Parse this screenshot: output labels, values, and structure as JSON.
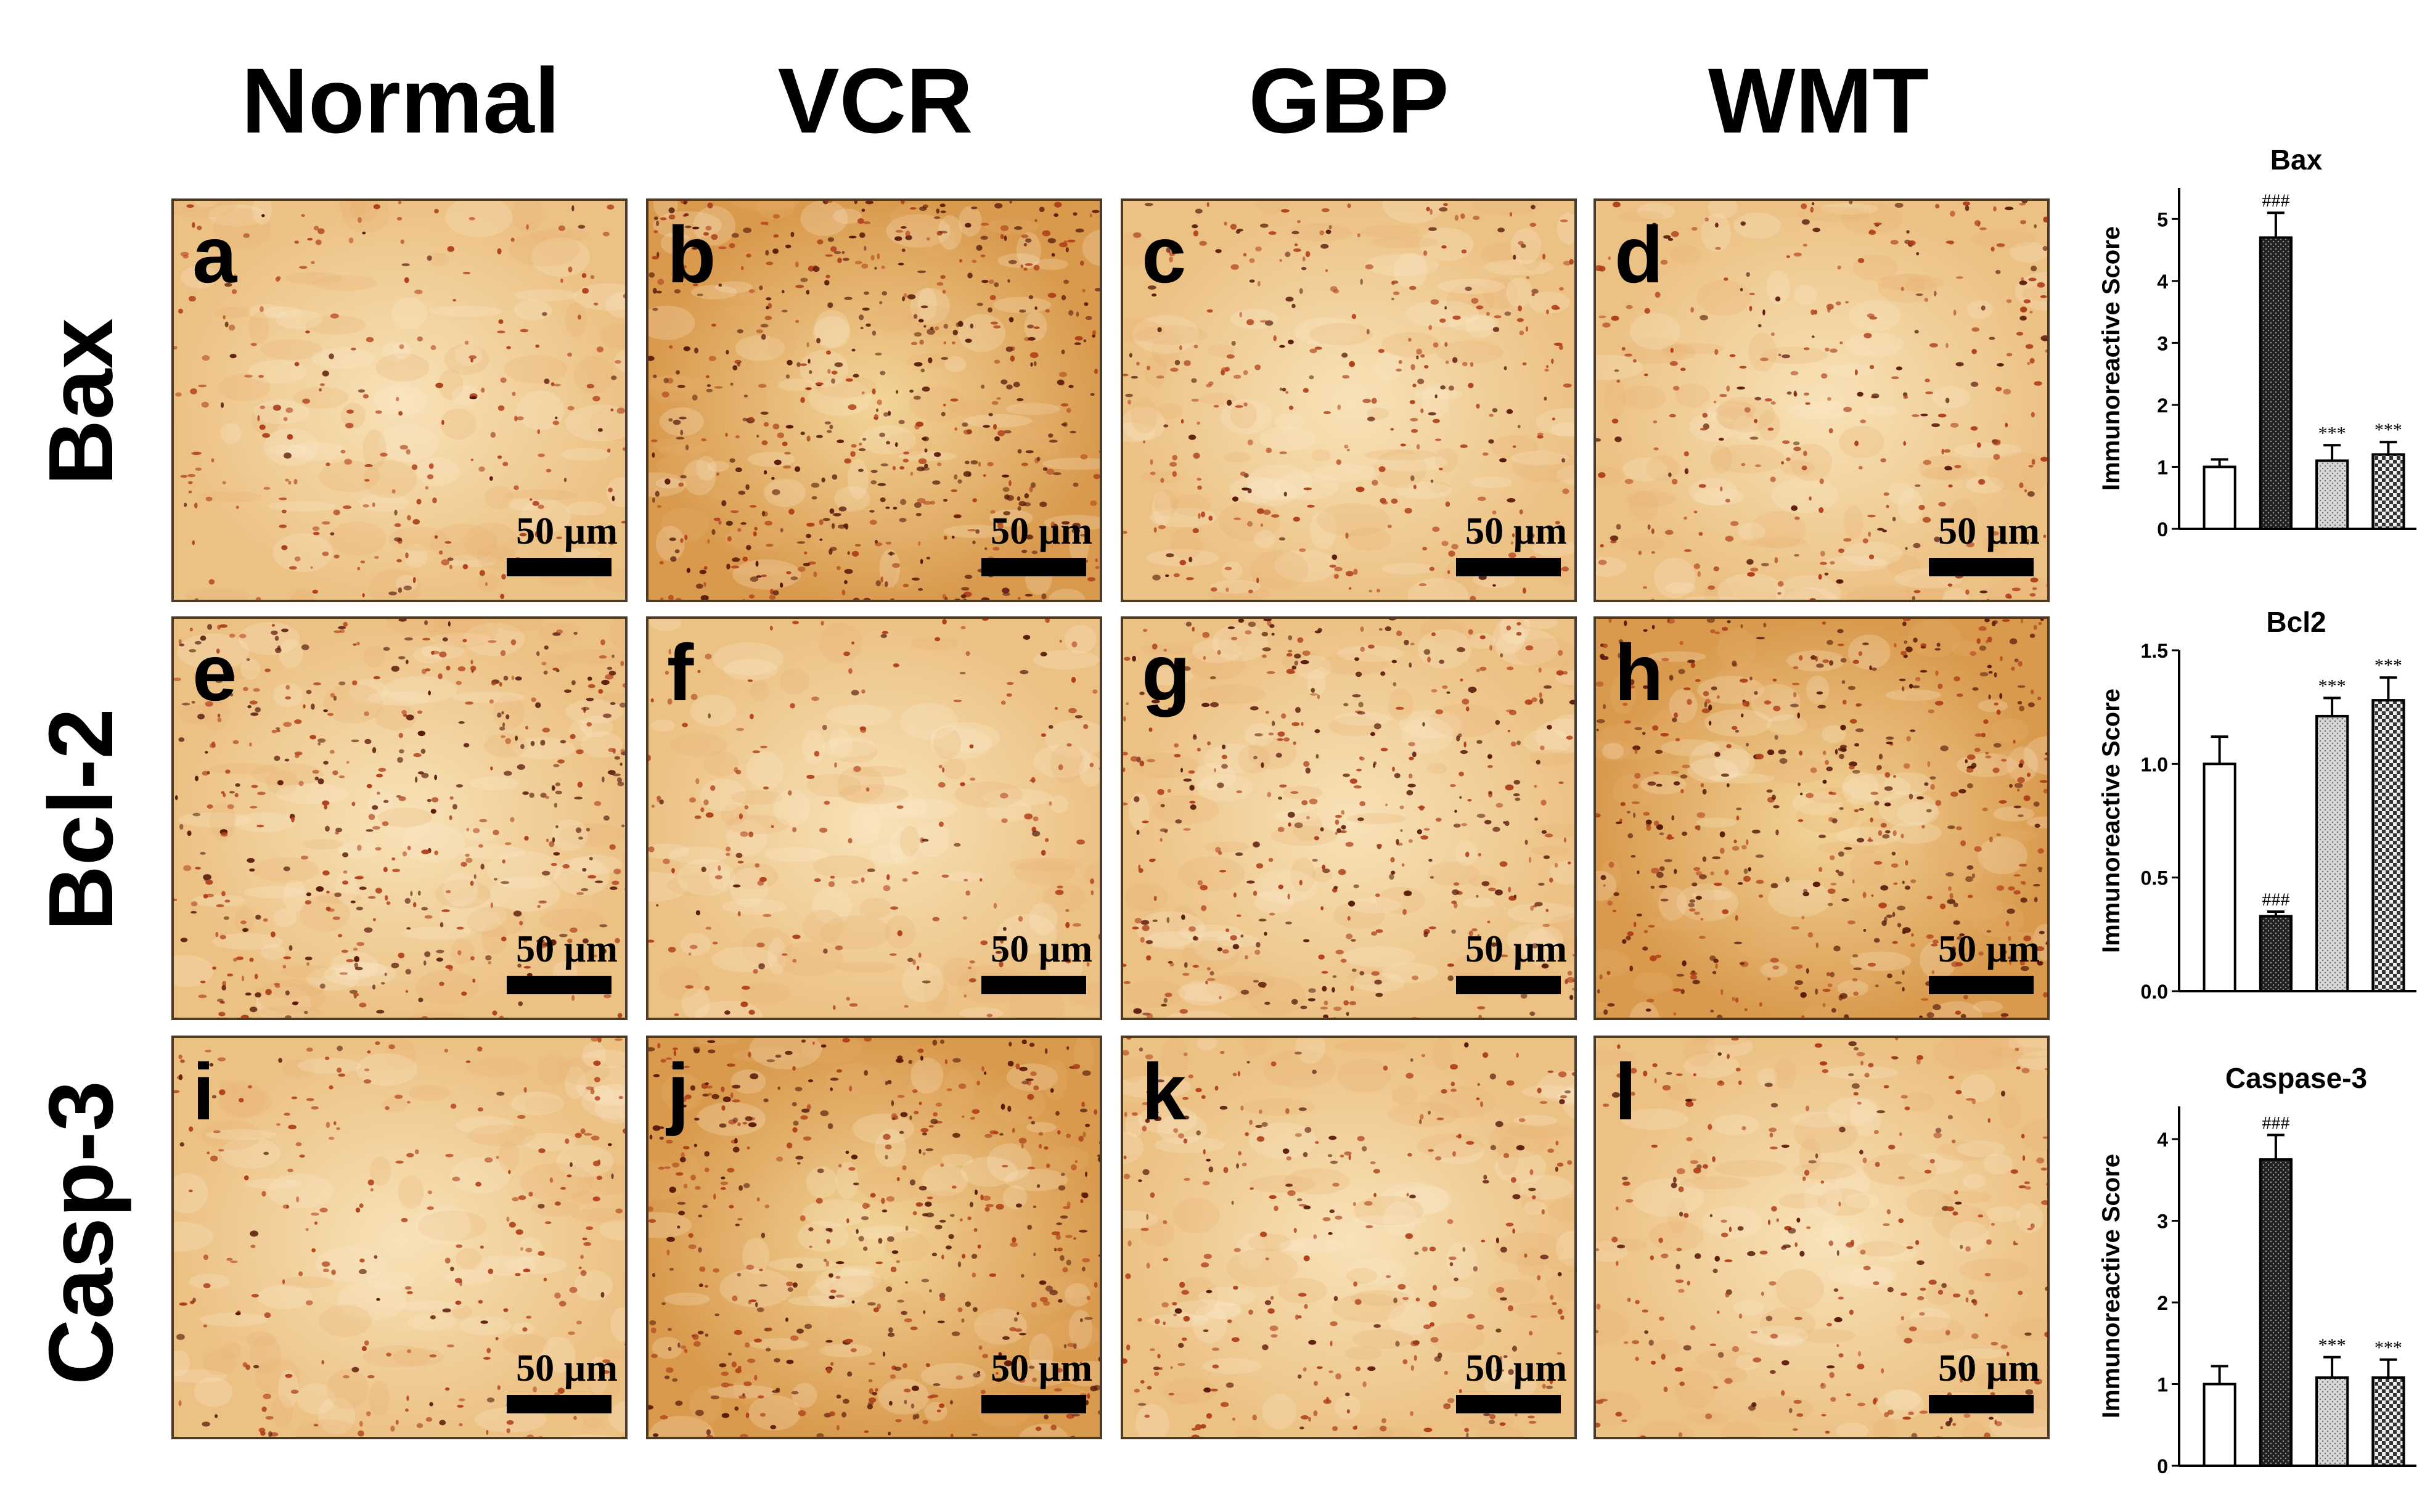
{
  "columns": [
    "Normal",
    "VCR",
    "GBP",
    "WMT"
  ],
  "rows": [
    "Bax",
    "Bcl-2",
    "Casp-3"
  ],
  "panels": [
    {
      "letter": "a",
      "scale": "50 µm",
      "density": 0.3,
      "seed": 11
    },
    {
      "letter": "b",
      "scale": "50 µm",
      "density": 1.0,
      "seed": 23
    },
    {
      "letter": "c",
      "scale": "50 µm",
      "density": 0.45,
      "seed": 37
    },
    {
      "letter": "d",
      "scale": "50 µm",
      "density": 0.45,
      "seed": 41
    },
    {
      "letter": "e",
      "scale": "50 µm",
      "density": 0.75,
      "seed": 53
    },
    {
      "letter": "f",
      "scale": "50 µm",
      "density": 0.22,
      "seed": 61
    },
    {
      "letter": "g",
      "scale": "50 µm",
      "density": 0.7,
      "seed": 73
    },
    {
      "letter": "h",
      "scale": "50 µm",
      "density": 0.9,
      "seed": 89
    },
    {
      "letter": "i",
      "scale": "50 µm",
      "density": 0.3,
      "seed": 97
    },
    {
      "letter": "j",
      "scale": "50 µm",
      "density": 0.85,
      "seed": 103
    },
    {
      "letter": "k",
      "scale": "50 µm",
      "density": 0.45,
      "seed": 113
    },
    {
      "letter": "l",
      "scale": "50 µm",
      "density": 0.4,
      "seed": 127
    }
  ],
  "chart_data": [
    {
      "type": "bar",
      "title": "Bax",
      "ylabel": "Immunoreactive Score",
      "ylim": [
        0,
        5.5
      ],
      "yticks": [
        "0",
        "1",
        "2",
        "3",
        "4",
        "5"
      ],
      "values": [
        1.0,
        4.7,
        1.1,
        1.2
      ],
      "errors": [
        0.12,
        0.4,
        0.25,
        0.2
      ],
      "annotations": [
        "",
        "###",
        "***",
        "***"
      ],
      "fills": [
        "white",
        "dark-dots",
        "light-dots",
        "checker"
      ]
    },
    {
      "type": "bar",
      "title": "Bcl2",
      "ylabel": "Immunoreactive Score",
      "ylim": [
        0,
        1.5
      ],
      "yticks": [
        "0.0",
        "0.5",
        "1.0",
        "1.5"
      ],
      "values": [
        1.0,
        0.33,
        1.21,
        1.28
      ],
      "errors": [
        0.12,
        0.02,
        0.08,
        0.1
      ],
      "annotations": [
        "",
        "###",
        "***",
        "***"
      ],
      "fills": [
        "white",
        "dark-dots",
        "light-dots",
        "checker"
      ]
    },
    {
      "type": "bar",
      "title": "Caspase-3",
      "ylabel": "Immunoreactive Score",
      "ylim": [
        0,
        4.4
      ],
      "yticks": [
        "0",
        "1",
        "2",
        "3",
        "4"
      ],
      "values": [
        1.0,
        3.75,
        1.08,
        1.08
      ],
      "errors": [
        0.22,
        0.3,
        0.25,
        0.22
      ],
      "annotations": [
        "",
        "###",
        "***",
        "***"
      ],
      "fills": [
        "white",
        "dark-dots",
        "light-dots",
        "checker"
      ]
    }
  ]
}
